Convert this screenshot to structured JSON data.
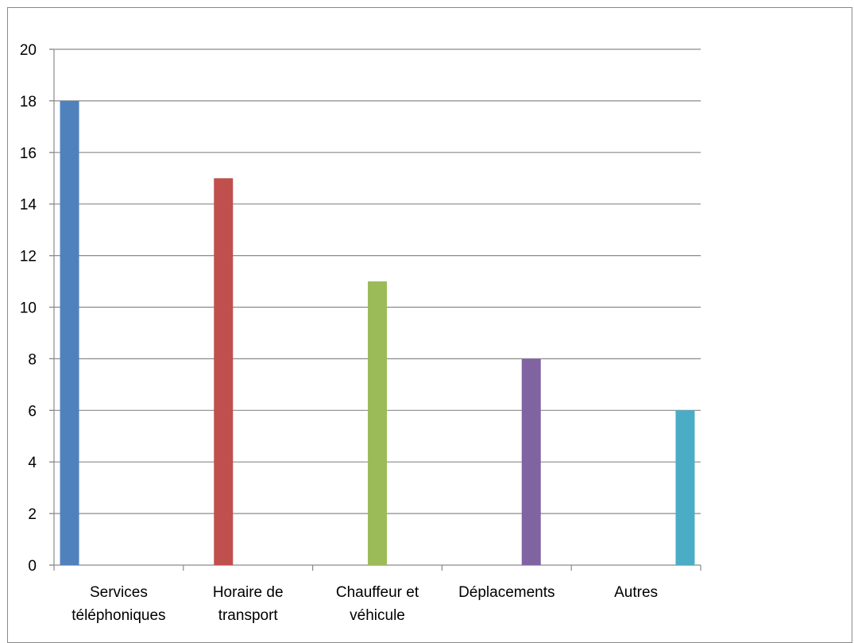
{
  "chart_data": {
    "type": "bar",
    "categories": [
      [
        "Services",
        "téléphoniques"
      ],
      [
        "Horaire de",
        "transport"
      ],
      [
        "Chauffeur et",
        "véhicule"
      ],
      [
        "Déplacements"
      ],
      [
        "Autres"
      ]
    ],
    "values": [
      18,
      15,
      11,
      8,
      6
    ],
    "colors": [
      "#4f81bd",
      "#c0504d",
      "#9bbb59",
      "#8064a2",
      "#4bacc6"
    ],
    "yticks": [
      0,
      2,
      4,
      6,
      8,
      10,
      12,
      14,
      16,
      18,
      20
    ],
    "ylim": [
      0,
      20
    ],
    "grid": true,
    "legend": "none"
  }
}
